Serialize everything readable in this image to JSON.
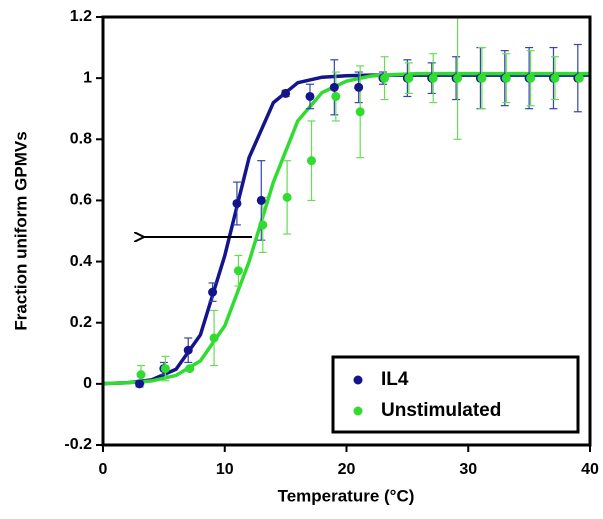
{
  "chart_data": {
    "type": "scatter",
    "xlabel": "Temperature (°C)",
    "ylabel": "Fraction uniform GPMVs",
    "xlim": [
      0,
      40
    ],
    "xticks": [
      0,
      10,
      20,
      30,
      40
    ],
    "ylim": [
      -0.2,
      1.2
    ],
    "yticks": [
      -0.2,
      0,
      0.2,
      0.4,
      0.6,
      0.8,
      1,
      1.2
    ],
    "legend": "lower right",
    "x": [
      3,
      5,
      7,
      9,
      11,
      13,
      15,
      17,
      19,
      21,
      23,
      25,
      27,
      29,
      31,
      33,
      35,
      37,
      39
    ],
    "series": [
      {
        "name": "IL4",
        "color": "#14148c",
        "error_color": "#3344aa",
        "values": [
          0.0,
          0.05,
          0.11,
          0.3,
          0.59,
          0.6,
          0.95,
          0.94,
          0.97,
          0.97,
          1.0,
          1.0,
          1.0,
          1.0,
          1.0,
          1.0,
          1.0,
          1.0,
          1.0
        ],
        "errors": [
          0.01,
          0.02,
          0.04,
          0.03,
          0.07,
          0.13,
          0.01,
          0.04,
          0.09,
          0.05,
          0.02,
          0.06,
          0.05,
          0.07,
          0.1,
          0.09,
          0.1,
          0.1,
          0.11
        ]
      },
      {
        "name": "Unstimulated",
        "color": "#2fdc2f",
        "error_color": "#66dd55",
        "values": [
          0.03,
          0.05,
          0.05,
          0.15,
          0.37,
          0.52,
          0.61,
          0.73,
          0.94,
          0.89,
          1.0,
          1.0,
          1.0,
          1.0,
          1.0,
          1.0,
          1.0,
          1.0,
          1.0
        ],
        "errors": [
          0.03,
          0.04,
          0.0,
          0.09,
          0.05,
          0.09,
          0.12,
          0.13,
          0.08,
          0.15,
          0.07,
          0.05,
          0.08,
          0.2,
          0.1,
          0.08,
          0.09,
          0.07,
          0.0
        ]
      }
    ],
    "fit_x": [
      0,
      2,
      4,
      6,
      8,
      10,
      12,
      14,
      16,
      18,
      20,
      22,
      24,
      26,
      28,
      30,
      32,
      34,
      36,
      38,
      40
    ],
    "fits": [
      {
        "color": "#14148c",
        "values": [
          0.0009,
          0.0035,
          0.013,
          0.048,
          0.16,
          0.42,
          0.74,
          0.92,
          0.985,
          1.003,
          1.008,
          1.01,
          1.01,
          1.01,
          1.01,
          1.01,
          1.01,
          1.01,
          1.01,
          1.01,
          1.01
        ]
      },
      {
        "color": "#2fdc2f",
        "values": [
          0.0012,
          0.0035,
          0.0098,
          0.0275,
          0.075,
          0.19,
          0.4,
          0.66,
          0.86,
          0.953,
          0.99,
          1.007,
          1.012,
          1.015,
          1.015,
          1.015,
          1.015,
          1.015,
          1.015,
          1.015,
          1.015
        ]
      }
    ]
  }
}
